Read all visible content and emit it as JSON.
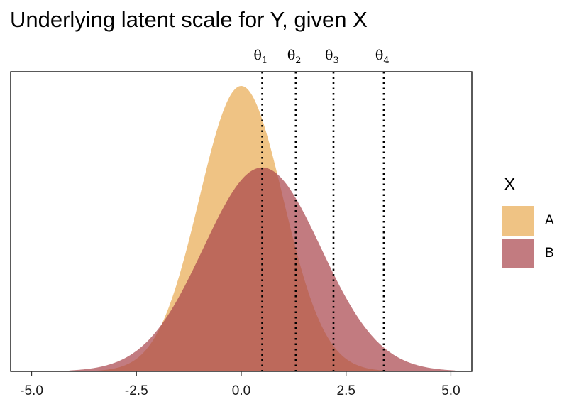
{
  "chart_data": {
    "type": "area",
    "title": "Underlying latent scale for Y, given X",
    "xlabel": "",
    "ylabel": "",
    "xlim": [
      -5.5,
      5.5
    ],
    "x_ticks": [
      "-5.0",
      "-2.5",
      "0.0",
      "2.5",
      "5.0"
    ],
    "x_tick_values": [
      -5,
      -2.5,
      0,
      2.5,
      5
    ],
    "y_ticks_shown": false,
    "grid": false,
    "legend": {
      "title": "X",
      "placement": "right"
    },
    "series": [
      {
        "name": "A",
        "distribution": "normal",
        "mean": 0.0,
        "sd": 1.0,
        "color": "#E8A950",
        "opacity": 0.7
      },
      {
        "name": "B",
        "distribution": "normal",
        "mean": 0.5,
        "sd": 1.4,
        "color": "#A8434A",
        "opacity": 0.7
      }
    ],
    "density_x_range": [
      -4.1,
      5.1
    ],
    "thresholds": [
      {
        "symbol": "θ",
        "subscript": "1",
        "value": 0.5
      },
      {
        "symbol": "θ",
        "subscript": "2",
        "value": 1.3
      },
      {
        "symbol": "θ",
        "subscript": "3",
        "value": 2.2
      },
      {
        "symbol": "θ",
        "subscript": "4",
        "value": 3.4
      }
    ]
  }
}
